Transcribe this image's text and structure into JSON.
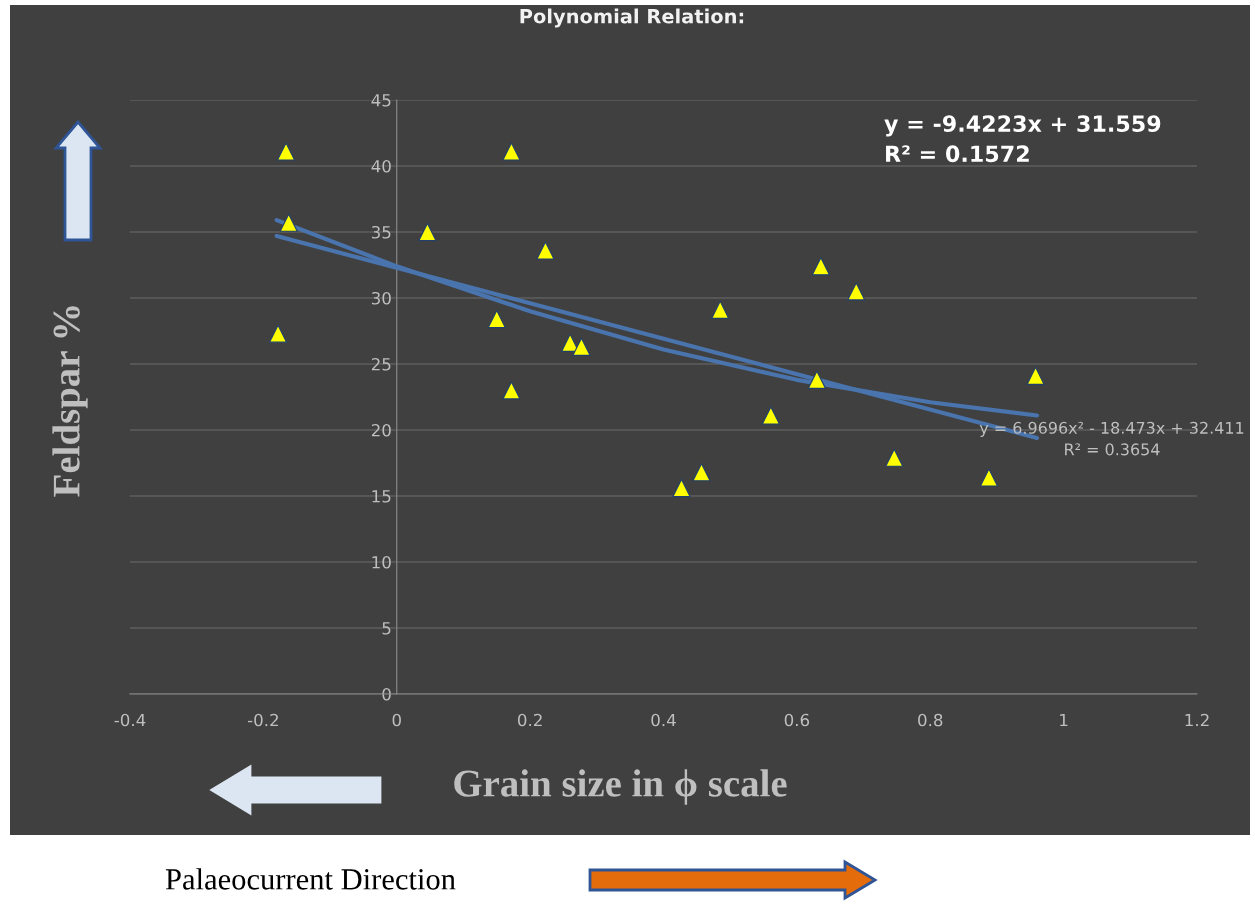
{
  "chart_data": {
    "type": "scatter",
    "title": "Polynomial Relation:",
    "xlabel": "Grain size in ϕ scale",
    "ylabel": "Feldspar %",
    "xlim": [
      -0.4,
      1.2
    ],
    "xticks": [
      -0.4,
      -0.2,
      0,
      0.2,
      0.4,
      0.6,
      0.8,
      1,
      1.2
    ],
    "ylim": [
      0,
      45
    ],
    "yticks": [
      0,
      5,
      10,
      15,
      20,
      25,
      30,
      35,
      40,
      45
    ],
    "grid": "y",
    "series": [
      {
        "marker": "triangle",
        "color": "#ffff00",
        "x": [
          -0.166,
          -0.162,
          -0.178,
          0.046,
          0.172,
          0.223,
          0.15,
          0.172,
          0.26,
          0.277,
          0.485,
          0.561,
          0.427,
          0.457,
          0.636,
          0.689,
          0.63,
          0.746,
          0.888,
          0.958
        ],
        "values": [
          41.1,
          35.7,
          27.3,
          35.0,
          41.1,
          33.6,
          28.4,
          23.0,
          26.6,
          26.3,
          29.1,
          21.1,
          15.6,
          16.8,
          32.4,
          30.5,
          23.8,
          17.9,
          16.4,
          24.1
        ]
      },
      {
        "type": "line",
        "color": "#4a74ad",
        "x": [
          -0.18,
          0.96
        ],
        "values": [
          34.7,
          19.4
        ]
      },
      {
        "type": "line",
        "color": "#4a74ad",
        "x": [
          -0.18,
          0,
          0.2,
          0.4,
          0.6,
          0.8,
          0.96
        ],
        "values": [
          35.9,
          32.4,
          29.0,
          26.1,
          23.8,
          22.1,
          21.1
        ]
      }
    ],
    "annotations": [
      "y = -9.4223x + 31.559\nR² = 0.1572",
      "y = 6.9696x² - 18.473x + 32.411\nR² = 0.3654",
      "Palaeocurrent Direction"
    ]
  }
}
